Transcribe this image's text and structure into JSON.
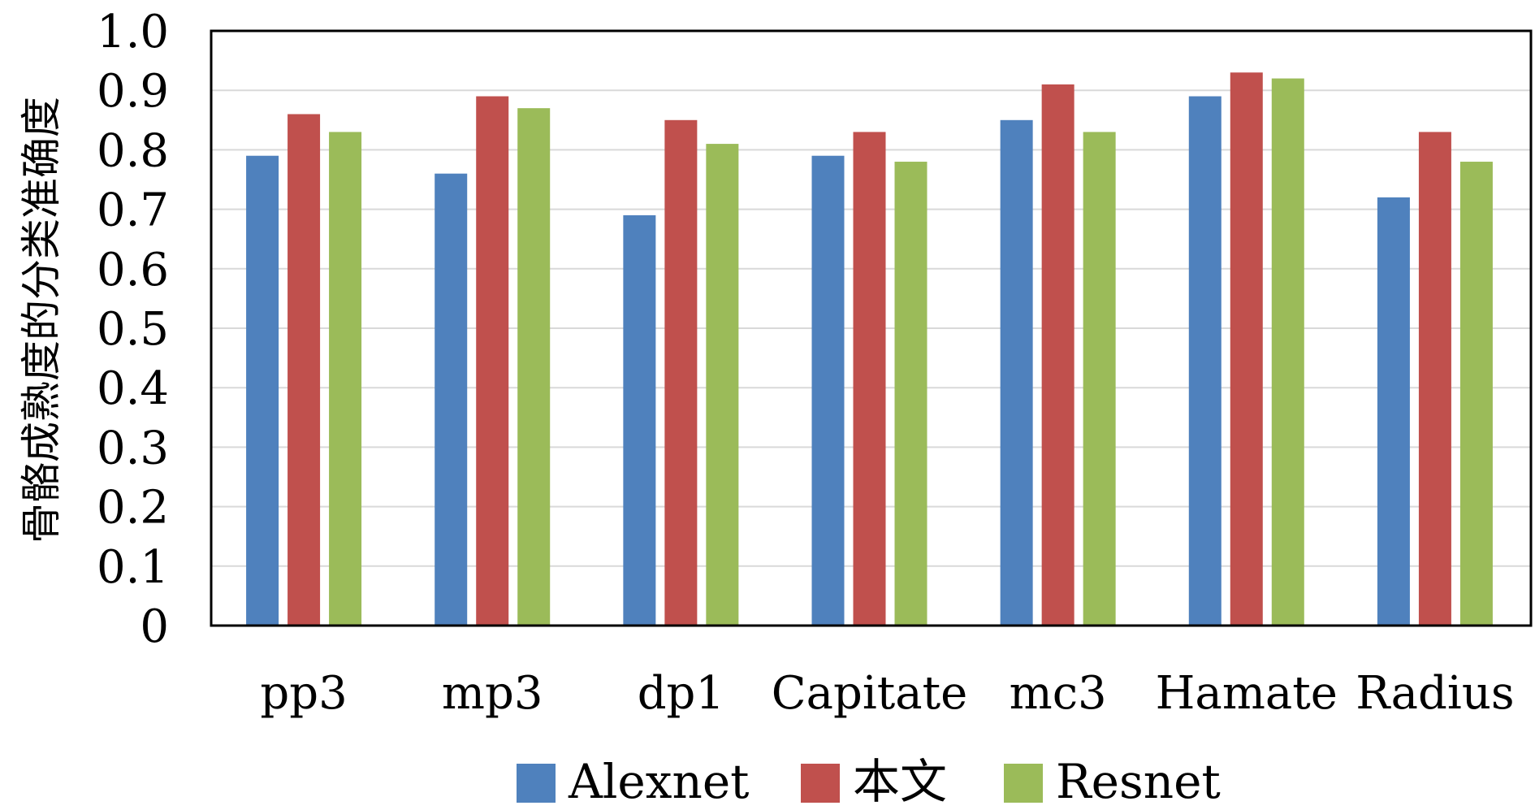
{
  "chart_data": {
    "type": "bar",
    "title": "",
    "xlabel": "",
    "ylabel": "骨骼成熟度的分类准确度",
    "ylim": [
      0,
      1.0
    ],
    "yticks": [
      "0",
      "0.1",
      "0.2",
      "0.3",
      "0.4",
      "0.5",
      "0.6",
      "0.7",
      "0.8",
      "0.9",
      "1.0"
    ],
    "categories": [
      "pp3",
      "mp3",
      "dp1",
      "Capitate",
      "mc3",
      "Hamate",
      "Radius"
    ],
    "grid": true,
    "legend_position": "bottom",
    "series": [
      {
        "name": "Alexnet",
        "color": "#4f81bd",
        "values": [
          0.79,
          0.76,
          0.69,
          0.79,
          0.85,
          0.89,
          0.72
        ]
      },
      {
        "name": "本文",
        "color": "#c0504d",
        "values": [
          0.86,
          0.89,
          0.85,
          0.83,
          0.91,
          0.93,
          0.83
        ]
      },
      {
        "name": "Resnet",
        "color": "#9bbb59",
        "values": [
          0.83,
          0.87,
          0.81,
          0.78,
          0.83,
          0.92,
          0.78
        ]
      }
    ]
  }
}
